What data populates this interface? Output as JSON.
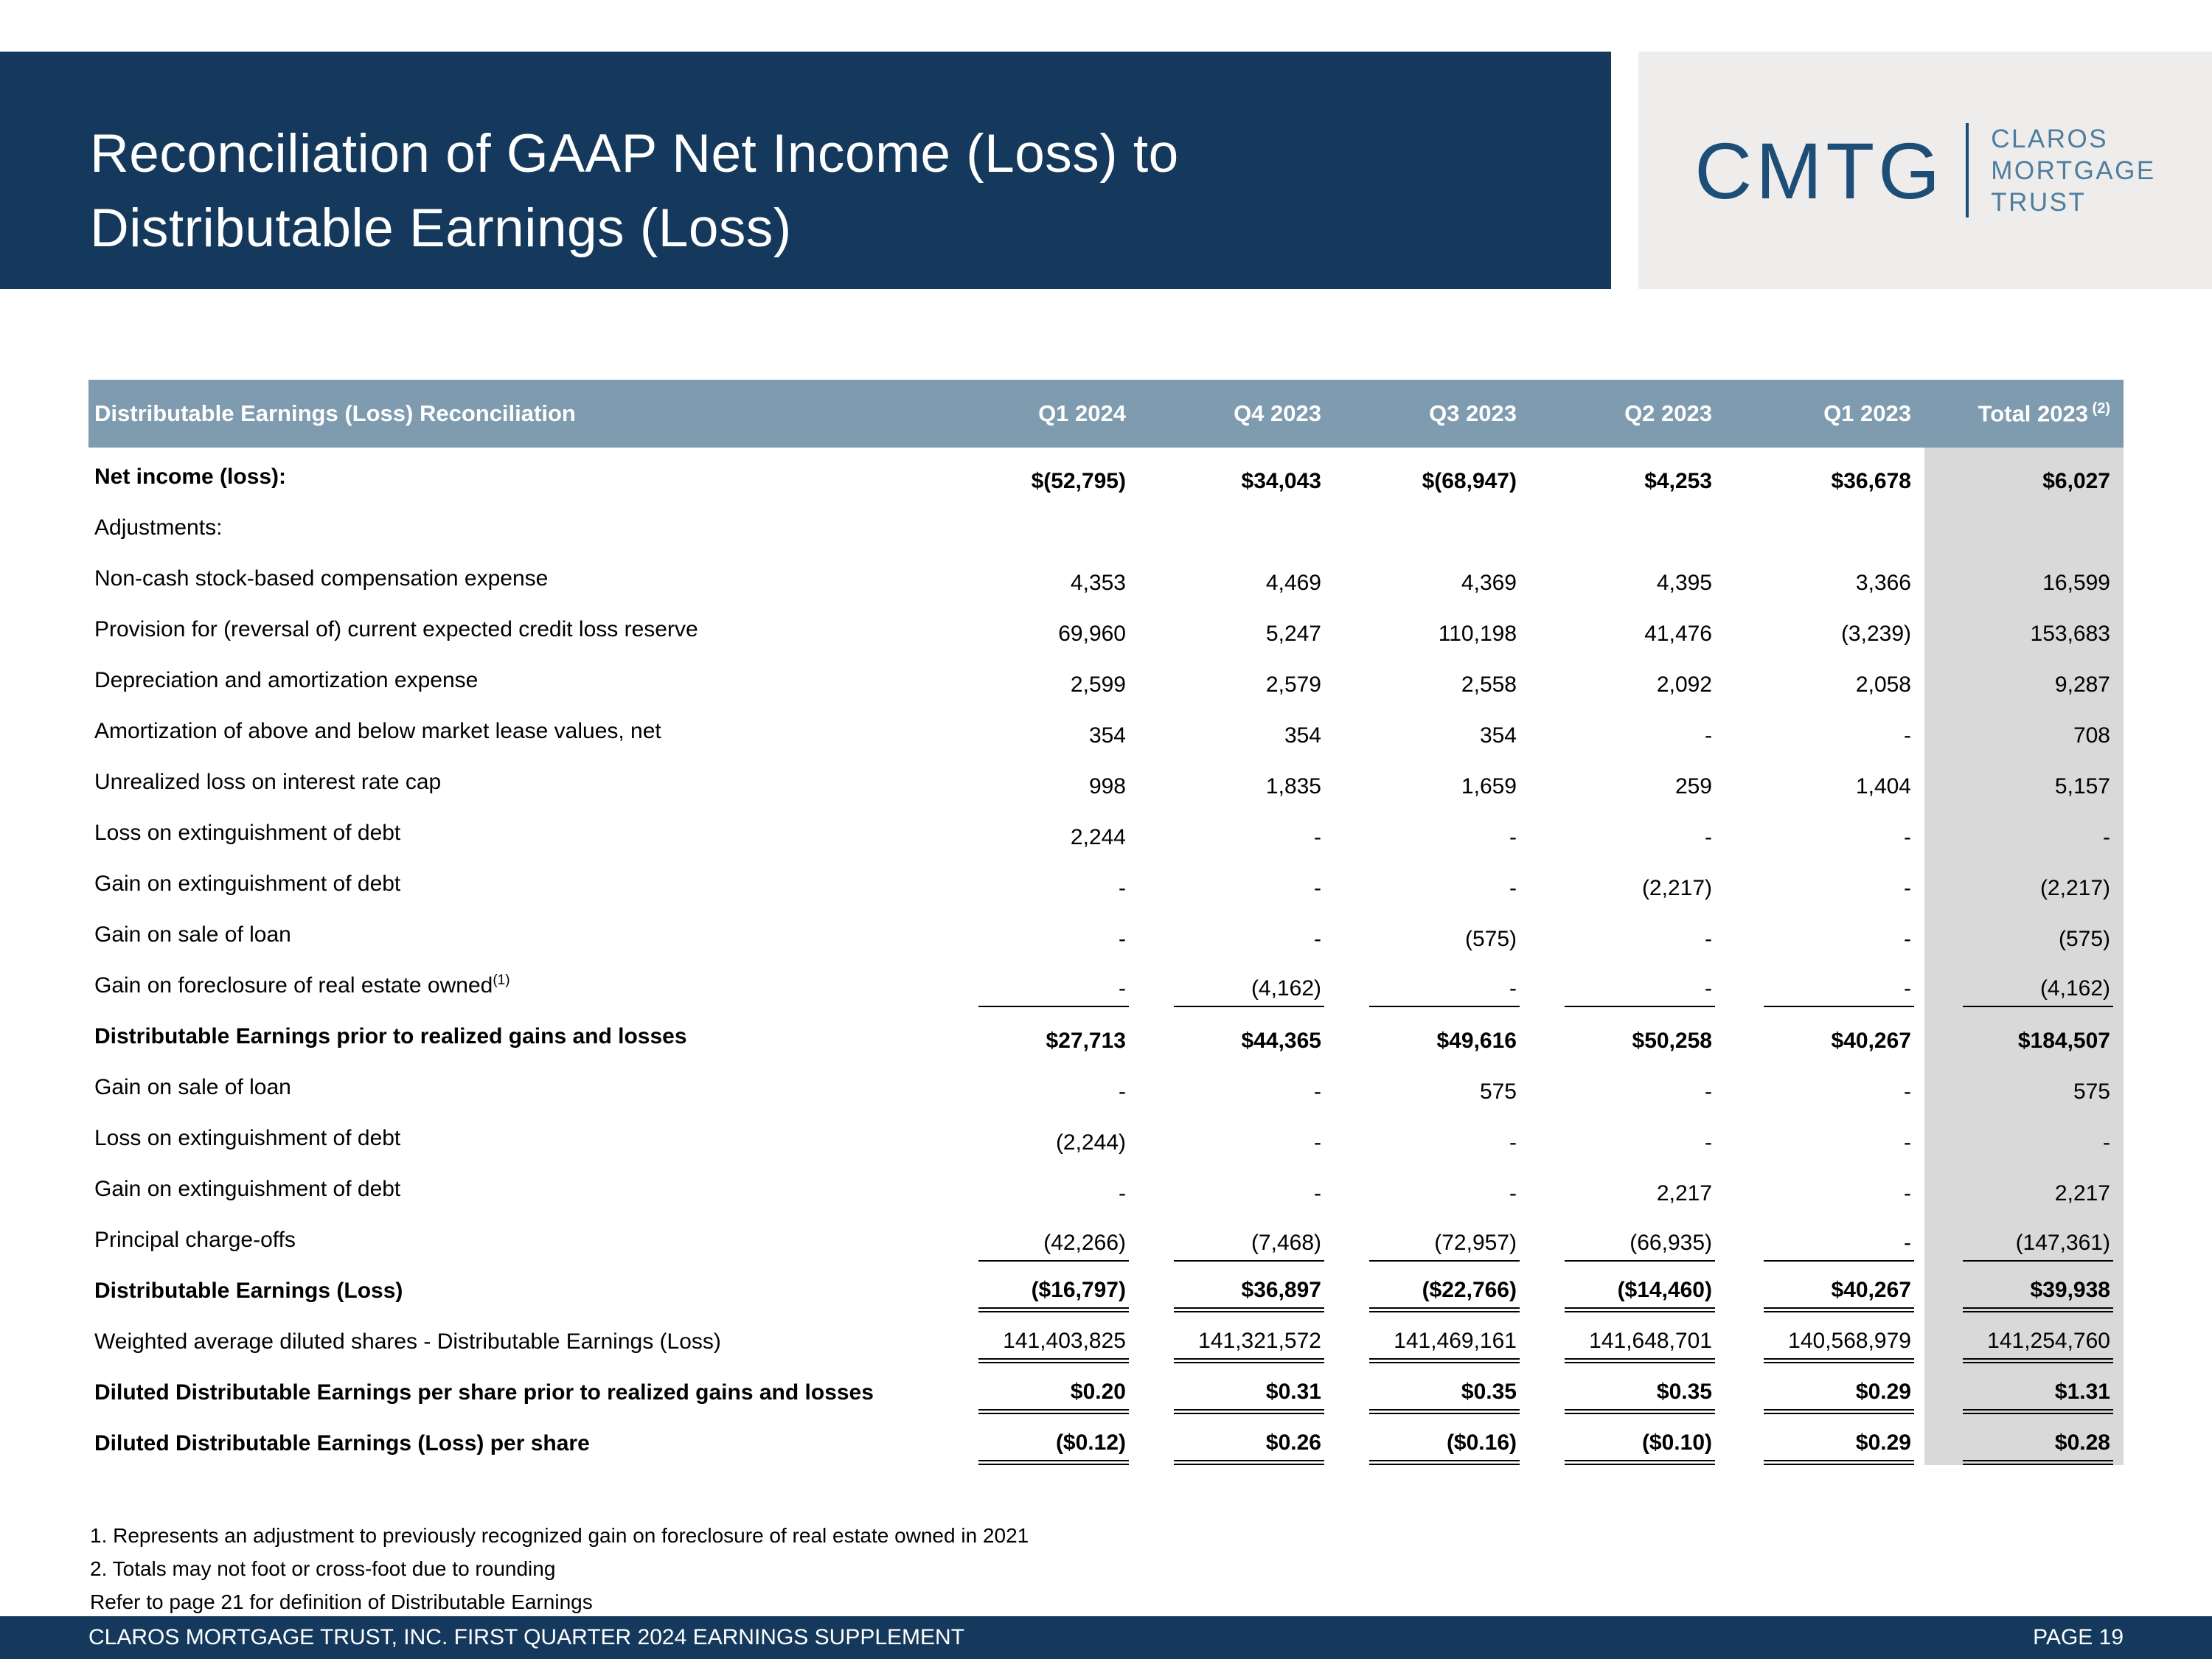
{
  "slide": {
    "title_line1": "Reconciliation of GAAP Net Income (Loss) to",
    "title_line2": "Distributable Earnings (Loss)"
  },
  "logo": {
    "monogram": "CMTG",
    "words": [
      "CLAROS",
      "MORTGAGE",
      "TRUST"
    ]
  },
  "colors": {
    "navy": "#14395c",
    "table_header_band": "#7e9bb0",
    "total_column_gray": "#d9d9d9",
    "logo_background": "#eeedec",
    "logo_monogram": "#1d4e77",
    "logo_words": "#4f7d9e"
  },
  "table": {
    "columns": [
      {
        "label": "Distributable Earnings (Loss) Reconciliation"
      },
      {
        "label": "Q1 2024"
      },
      {
        "label": "Q4 2023"
      },
      {
        "label": "Q3 2023"
      },
      {
        "label": "Q2 2023"
      },
      {
        "label": "Q1 2023"
      },
      {
        "label": "Total 2023",
        "sup": "(2)"
      }
    ],
    "rows": [
      {
        "label": "Net income (loss):",
        "bold": true,
        "values": [
          "$(52,795)",
          "$34,043",
          "$(68,947)",
          "$4,253",
          "$36,678",
          "$6,027"
        ]
      },
      {
        "label": "Adjustments:"
      },
      {
        "label": "Non-cash stock-based compensation expense",
        "values": [
          "4,353",
          "4,469",
          "4,369",
          "4,395",
          "3,366",
          "16,599"
        ]
      },
      {
        "label": "Provision for (reversal of) current expected credit loss reserve",
        "values": [
          "69,960",
          "5,247",
          "110,198",
          "41,476",
          "(3,239)",
          "153,683"
        ]
      },
      {
        "label": "Depreciation and amortization expense",
        "values": [
          "2,599",
          "2,579",
          "2,558",
          "2,092",
          "2,058",
          "9,287"
        ]
      },
      {
        "label": "Amortization of above and below market lease values, net",
        "values": [
          "354",
          "354",
          "354",
          "-",
          "-",
          "708"
        ]
      },
      {
        "label": "Unrealized loss on interest rate cap",
        "values": [
          "998",
          "1,835",
          "1,659",
          "259",
          "1,404",
          "5,157"
        ]
      },
      {
        "label": "Loss on extinguishment of debt",
        "values": [
          "2,244",
          "-",
          "-",
          "-",
          "-",
          "-"
        ]
      },
      {
        "label": "Gain on extinguishment of debt",
        "values": [
          "-",
          "-",
          "-",
          "(2,217)",
          "-",
          "(2,217)"
        ]
      },
      {
        "label": "Gain on sale of loan",
        "values": [
          "-",
          "-",
          "(575)",
          "-",
          "-",
          "(575)"
        ]
      },
      {
        "label": "Gain on foreclosure of real estate owned",
        "sup": "(1)",
        "values": [
          "-",
          "(4,162)",
          "-",
          "-",
          "-",
          "(4,162)"
        ],
        "rule": "single"
      },
      {
        "label": "Distributable Earnings prior to realized gains and losses",
        "bold": true,
        "values": [
          "$27,713",
          "$44,365",
          "$49,616",
          "$50,258",
          "$40,267",
          "$184,507"
        ]
      },
      {
        "label": "Gain on sale of loan",
        "values": [
          "-",
          "-",
          "575",
          "-",
          "-",
          "575"
        ]
      },
      {
        "label": "Loss on extinguishment of debt",
        "values": [
          "(2,244)",
          "-",
          "-",
          "-",
          "-",
          "-"
        ]
      },
      {
        "label": "Gain on extinguishment of debt",
        "values": [
          "-",
          "-",
          "-",
          "2,217",
          "-",
          "2,217"
        ]
      },
      {
        "label": "Principal charge-offs",
        "values": [
          "(42,266)",
          "(7,468)",
          "(72,957)",
          "(66,935)",
          "-",
          "(147,361)"
        ],
        "rule": "single"
      },
      {
        "label": "Distributable Earnings (Loss)",
        "bold": true,
        "values": [
          "($16,797)",
          "$36,897",
          "($22,766)",
          "($14,460)",
          "$40,267",
          "$39,938"
        ],
        "rule": "double"
      },
      {
        "label": "Weighted average diluted shares - Distributable Earnings (Loss)",
        "values": [
          "141,403,825",
          "141,321,572",
          "141,469,161",
          "141,648,701",
          "140,568,979",
          "141,254,760"
        ],
        "rule": "double"
      },
      {
        "label": "Diluted Distributable Earnings per share prior to realized gains and losses",
        "bold": true,
        "values": [
          "$0.20",
          "$0.31",
          "$0.35",
          "$0.35",
          "$0.29",
          "$1.31"
        ],
        "rule": "double"
      },
      {
        "label": "Diluted Distributable Earnings (Loss) per share",
        "bold": true,
        "values": [
          "($0.12)",
          "$0.26",
          "($0.16)",
          "($0.10)",
          "$0.29",
          "$0.28"
        ],
        "rule": "double"
      }
    ]
  },
  "footnotes": [
    "1. Represents an adjustment to previously recognized gain on foreclosure of real estate owned in 2021",
    "2. Totals may not foot or cross-foot due to rounding",
    "Refer to page 21 for definition of Distributable Earnings"
  ],
  "footer": {
    "left": "CLAROS MORTGAGE TRUST, INC. FIRST QUARTER 2024 EARNINGS SUPPLEMENT",
    "right": "PAGE 19"
  }
}
